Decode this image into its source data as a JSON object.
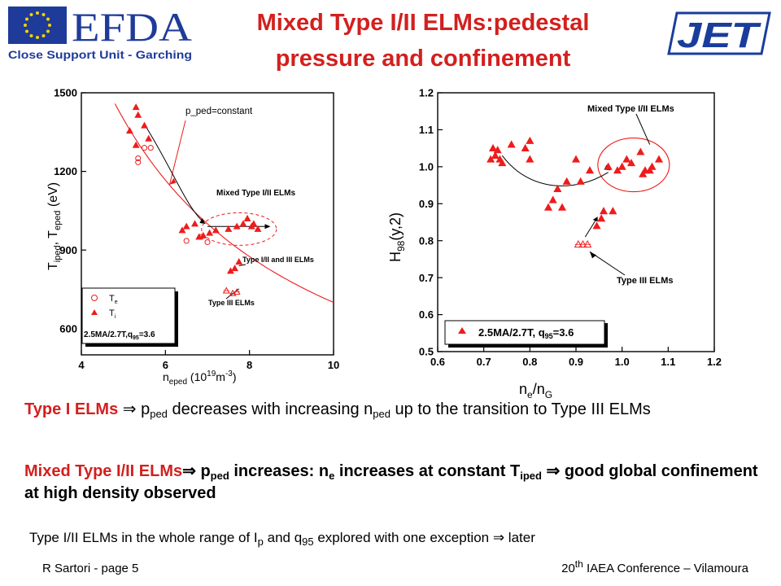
{
  "title_line1": "Mixed Type I/II ELMs:pedestal",
  "title_line2": "pressure and confinement",
  "logos": {
    "efda_text": "EFDA",
    "efda_subtitle": "Close Support Unit - Garching",
    "jet_text": "JET",
    "eu_flag_color": "#1f3b9a",
    "star_color": "#f5d200",
    "jet_color": "#1a3d9c"
  },
  "colors": {
    "accent": "#d2201e",
    "data_red": "#ee1c1c"
  },
  "chart_data": [
    {
      "type": "scatter",
      "title": "",
      "xlabel": "n_eped (10^19 m^-3)",
      "ylabel": "T_iped, T_eped (eV)",
      "xlim": [
        4,
        10
      ],
      "ylim": [
        500,
        1500
      ],
      "xticks": [
        4,
        6,
        8,
        10
      ],
      "yticks": [
        600,
        900,
        1200,
        1500
      ],
      "legend": {
        "position": "bottom-left",
        "entries": [
          "T_e",
          "T_i"
        ],
        "note": "2.5MA/2.7T,q_95=3.6"
      },
      "series": [
        {
          "name": "T_e",
          "marker": "open-circle",
          "x": [
            5.35,
            5.35,
            5.5,
            5.65,
            6.5,
            6.85,
            7.0
          ],
          "y": [
            1235,
            1250,
            1290,
            1290,
            935,
            950,
            930
          ]
        },
        {
          "name": "T_i",
          "marker": "filled-triangle",
          "x": [
            5.15,
            5.3,
            5.35,
            5.5,
            5.6,
            5.3,
            6.4,
            6.5,
            6.7,
            6.8,
            6.9,
            7.05,
            7.2,
            7.5,
            7.7,
            7.85,
            7.95,
            8.05,
            8.1,
            8.2,
            7.55,
            7.65,
            7.75
          ],
          "y": [
            1355,
            1445,
            1415,
            1375,
            1325,
            1300,
            975,
            990,
            1000,
            950,
            955,
            965,
            975,
            980,
            990,
            1000,
            1020,
            990,
            1000,
            980,
            820,
            830,
            855
          ]
        },
        {
          "name": "Type III ELMs",
          "marker": "open-triangle",
          "x": [
            7.45,
            7.6,
            7.7
          ],
          "y": [
            745,
            735,
            740
          ]
        }
      ],
      "annotations": [
        "p_ped=constant",
        "Mixed Type I/II ELMs",
        "Type I/II and III ELMs",
        "Type III ELMs"
      ]
    },
    {
      "type": "scatter",
      "title": "",
      "xlabel": "n_e/n_G",
      "ylabel": "H_98(y,2)",
      "xlim": [
        0.6,
        1.2
      ],
      "ylim": [
        0.5,
        1.2
      ],
      "xticks": [
        "0.6",
        "0.7",
        "0.8",
        "0.9",
        "1.0",
        "1.1",
        "1.2"
      ],
      "yticks": [
        "0.5",
        "0.6",
        "0.7",
        "0.8",
        "0.9",
        "1.0",
        "1.1",
        "1.2"
      ],
      "legend": {
        "position": "bottom",
        "entries": [
          "2.5MA/2.7T, q_95=3.6"
        ]
      },
      "series": [
        {
          "name": "2.5MA/2.7T, q_95=3.6",
          "marker": "filled-triangle",
          "x": [
            0.715,
            0.72,
            0.725,
            0.73,
            0.735,
            0.74,
            0.76,
            0.79,
            0.8,
            0.8,
            0.84,
            0.85,
            0.86,
            0.87,
            0.88,
            0.9,
            0.91,
            0.93,
            0.945,
            0.955,
            0.96,
            0.97,
            0.98,
            0.99,
            1.0,
            1.01,
            1.02,
            1.04,
            1.045,
            1.05,
            1.06,
            1.065,
            1.08
          ],
          "y": [
            1.02,
            1.05,
            1.03,
            1.045,
            1.02,
            1.01,
            1.06,
            1.05,
            1.07,
            1.02,
            0.89,
            0.91,
            0.94,
            0.89,
            0.96,
            1.02,
            0.96,
            0.99,
            0.84,
            0.86,
            0.88,
            1.0,
            0.88,
            0.99,
            1.0,
            1.02,
            1.01,
            1.04,
            0.98,
            0.99,
            0.99,
            1.0,
            1.02
          ]
        },
        {
          "name": "Type III ELMs",
          "marker": "open-triangle",
          "x": [
            0.905,
            0.915,
            0.925
          ],
          "y": [
            0.79,
            0.79,
            0.79
          ]
        }
      ],
      "annotations": [
        "Mixed Type I/II ELMs",
        "Type III ELMs"
      ]
    }
  ],
  "text": {
    "p1_a": "Type I ELMs ",
    "p1_b": " p",
    "p1_sub1": "ped",
    "p1_c": " decreases with increasing n",
    "p1_sub2": "ped",
    "p1_d": " up to the transition to Type III ELMs",
    "p2_a": "Mixed Type I/II ELMs",
    "p2_b": " p",
    "p2_sub1": "ped",
    "p2_c": " increases: n",
    "p2_sub2": "e",
    "p2_d": " increases at constant T",
    "p2_sub3": "iped",
    "p2_e": " good global confinement at high density observed",
    "p3_a": "Type I/II ELMs in the whole range of I",
    "p3_sub1": "p",
    "p3_b": " and q",
    "p3_sub2": "95",
    "p3_c": " explored with one exception ",
    "p3_d": " later",
    "arrow": "⇒"
  },
  "footer": {
    "left": "R Sartori  - page 5",
    "right_sup": "th",
    "right_a": "20",
    "right_b": " IAEA Conference – Vilamoura"
  }
}
